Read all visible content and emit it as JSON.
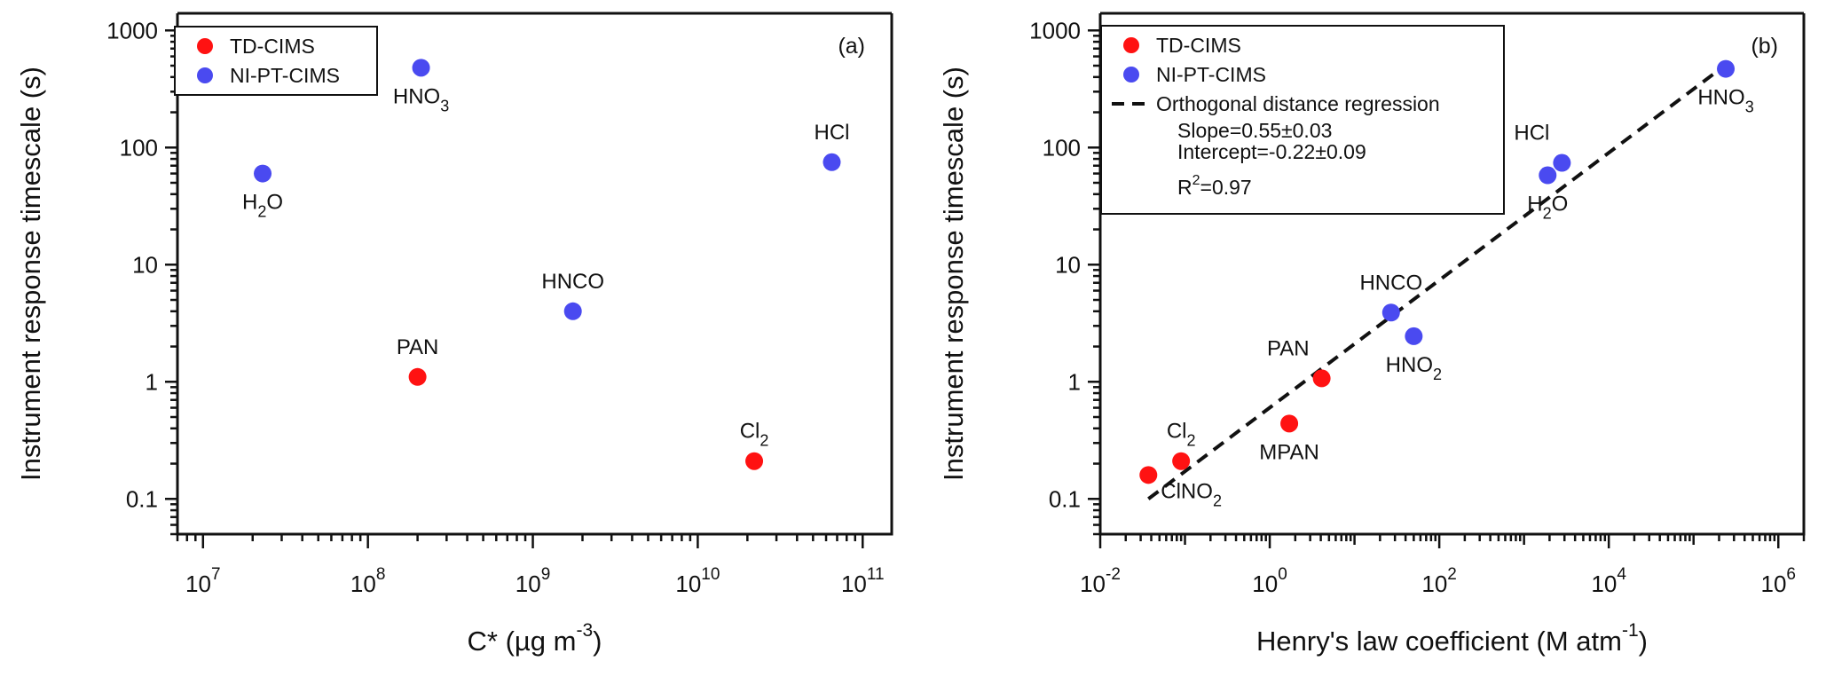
{
  "colors": {
    "td_cims": "#ff1212",
    "ni_pt_cims": "#4a4af0",
    "axis": "#111111"
  },
  "chart_data": [
    {
      "type": "scatter",
      "panel_label": "(a)",
      "xlabel_main": "C* (µg m",
      "xlabel_exp": "-3",
      "xlabel_end": ")",
      "ylabel": "Instrument response timescale (s)",
      "xscale": "log",
      "yscale": "log",
      "xlim": [
        7000000,
        150000000000
      ],
      "ylim": [
        0.05,
        1400
      ],
      "x_ticks": [
        {
          "value": 10000000,
          "base": "10",
          "exp": "7"
        },
        {
          "value": 100000000,
          "base": "10",
          "exp": "8"
        },
        {
          "value": 1000000000,
          "base": "10",
          "exp": "9"
        },
        {
          "value": 10000000000,
          "base": "10",
          "exp": "10"
        },
        {
          "value": 100000000000,
          "base": "10",
          "exp": "11"
        }
      ],
      "y_ticks": [
        {
          "value": 0.1,
          "label": "0.1"
        },
        {
          "value": 1,
          "label": "1"
        },
        {
          "value": 10,
          "label": "10"
        },
        {
          "value": 100,
          "label": "100"
        },
        {
          "value": 1000,
          "label": "1000"
        }
      ],
      "legend": {
        "placement": "top-left",
        "entries": [
          {
            "name": "TD-CIMS",
            "color_key": "td_cims"
          },
          {
            "name": "NI-PT-CIMS",
            "color_key": "ni_pt_cims"
          }
        ]
      },
      "series": [
        {
          "name": "TD-CIMS",
          "color_key": "td_cims",
          "points": [
            {
              "x": 200000000,
              "y": 1.1,
              "label": "PAN",
              "sub": "",
              "pos": "above"
            },
            {
              "x": 22000000000,
              "y": 0.21,
              "label": "Cl",
              "sub": "2",
              "pos": "above"
            }
          ]
        },
        {
          "name": "NI-PT-CIMS",
          "color_key": "ni_pt_cims",
          "points": [
            {
              "x": 23000000,
              "y": 60,
              "label": "H",
              "sub": "2",
              "tail": "O",
              "pos": "below"
            },
            {
              "x": 210000000,
              "y": 480,
              "label": "HNO",
              "sub": "3",
              "pos": "below"
            },
            {
              "x": 1750000000,
              "y": 4,
              "label": "HNCO",
              "sub": "",
              "pos": "above"
            },
            {
              "x": 65000000000,
              "y": 75,
              "label": "HCl",
              "sub": "",
              "pos": "above"
            }
          ]
        }
      ]
    },
    {
      "type": "scatter",
      "panel_label": "(b)",
      "xlabel_main": "Henry's law coefficient (M atm",
      "xlabel_exp": "-1",
      "xlabel_end": ")",
      "ylabel": "Instrument response timescale (s)",
      "xscale": "log",
      "yscale": "log",
      "xlim": [
        0.01,
        2000000
      ],
      "ylim": [
        0.05,
        1400
      ],
      "x_ticks": [
        {
          "value": 0.01,
          "base": "10",
          "exp": "-2"
        },
        {
          "value": 1,
          "base": "10",
          "exp": "0"
        },
        {
          "value": 100,
          "base": "10",
          "exp": "2"
        },
        {
          "value": 10000,
          "base": "10",
          "exp": "4"
        },
        {
          "value": 1000000,
          "base": "10",
          "exp": "6"
        }
      ],
      "y_ticks": [
        {
          "value": 0.1,
          "label": "0.1"
        },
        {
          "value": 1,
          "label": "1"
        },
        {
          "value": 10,
          "label": "10"
        },
        {
          "value": 100,
          "label": "100"
        },
        {
          "value": 1000,
          "label": "1000"
        }
      ],
      "legend": {
        "placement": "top-left",
        "entries": [
          {
            "name": "TD-CIMS",
            "color_key": "td_cims"
          },
          {
            "name": "NI-PT-CIMS",
            "color_key": "ni_pt_cims"
          },
          {
            "name": "Orthogonal distance regression",
            "dashed": true
          }
        ],
        "stats": {
          "slope": "Slope=0.55±0.03",
          "intercept": "Intercept=-0.22±0.09",
          "r2_main": "R",
          "r2_exp": "2",
          "r2_end": "=0.97"
        }
      },
      "fit_line": {
        "x": [
          0.037,
          250000
        ],
        "y": [
          0.1,
          520
        ]
      },
      "series": [
        {
          "name": "TD-CIMS",
          "color_key": "td_cims",
          "points": [
            {
              "x": 0.037,
              "y": 0.16,
              "label": "ClNO",
              "sub": "2",
              "pos": "below-right"
            },
            {
              "x": 0.09,
              "y": 0.21,
              "label": "Cl",
              "sub": "2",
              "pos": "above"
            },
            {
              "x": 1.7,
              "y": 0.44,
              "label": "MPAN",
              "sub": "",
              "pos": "below"
            },
            {
              "x": 4.1,
              "y": 1.07,
              "label": "PAN",
              "sub": "",
              "pos": "above-left"
            }
          ]
        },
        {
          "name": "NI-PT-CIMS",
          "color_key": "ni_pt_cims",
          "points": [
            {
              "x": 27,
              "y": 3.9,
              "label": "HNCO",
              "sub": "",
              "pos": "above"
            },
            {
              "x": 50,
              "y": 2.45,
              "label": "HNO",
              "sub": "2",
              "pos": "below"
            },
            {
              "x": 1900,
              "y": 58,
              "label": "H",
              "sub": "2",
              "tail": "O",
              "pos": "below"
            },
            {
              "x": 2800,
              "y": 74,
              "label": "HCl",
              "sub": "",
              "pos": "above-left"
            },
            {
              "x": 240000,
              "y": 470,
              "label": "HNO",
              "sub": "3",
              "pos": "below"
            }
          ]
        }
      ]
    }
  ]
}
